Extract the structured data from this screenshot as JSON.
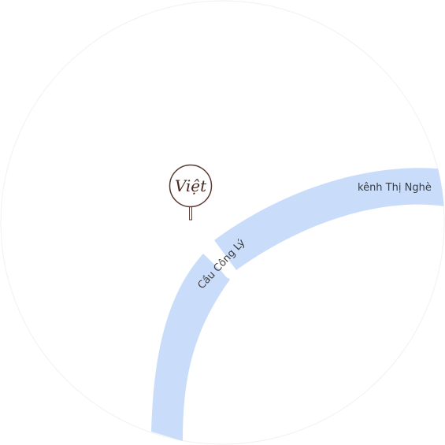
{
  "map": {
    "background_color": "#ffffff",
    "water_color": "#c9ddfb",
    "marker_border_color": "#5a3a30"
  },
  "labels": {
    "canal": "kênh Thị Nghè",
    "bridge": "Cầu Công Lý"
  },
  "marker": {
    "icon": "viet-logo-pin-icon",
    "text": "Việt"
  }
}
